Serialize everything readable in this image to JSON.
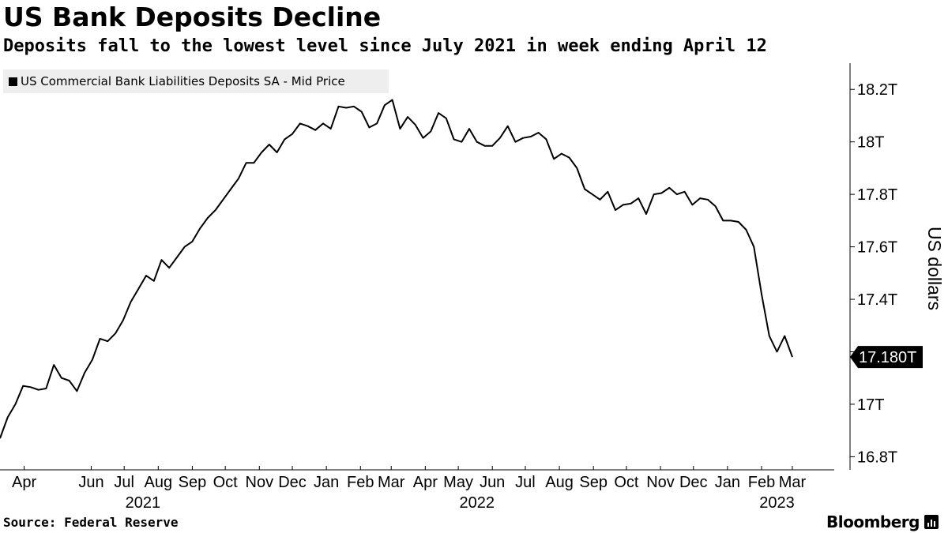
{
  "header": {
    "title": "US Bank Deposits Decline",
    "subtitle": "Deposits fall to the lowest level since July 2021 in week ending April 12"
  },
  "footer": {
    "source": "Source: Federal Reserve",
    "brand": "Bloomberg"
  },
  "colors": {
    "line": "#000000",
    "legend_background": "#eeeeee",
    "axis": "#000000"
  },
  "chart_data": {
    "type": "line",
    "title": "US Bank Deposits Decline",
    "subtitle": "Deposits fall to the lowest level since July 2021 in week ending April 12",
    "xlabel": "",
    "ylabel": "US dollars",
    "y_unit": "T",
    "legend": {
      "placement": "top-left",
      "entries": [
        "US Commercial Bank Liabilities Deposits SA - Mid Price"
      ]
    },
    "grid": false,
    "ylim": [
      16.75,
      18.3
    ],
    "y_ticks": [
      16.8,
      17.0,
      17.2,
      17.4,
      17.6,
      17.8,
      18.0,
      18.2
    ],
    "y_tick_labels": [
      "16.8T",
      "17T",
      "17.2T",
      "17.4T",
      "17.6T",
      "17.8T",
      "18T",
      "18.2T"
    ],
    "last_value_label": "17.180T",
    "x_range": [
      "2021-03-24",
      "2023-04-25"
    ],
    "month_labels": [
      {
        "label": "Apr",
        "date": "2021-04-15"
      },
      {
        "label": "Jun",
        "date": "2021-06-15"
      },
      {
        "label": "Jul",
        "date": "2021-07-15"
      },
      {
        "label": "Aug",
        "date": "2021-08-15"
      },
      {
        "label": "Sep",
        "date": "2021-09-15"
      },
      {
        "label": "Oct",
        "date": "2021-10-15"
      },
      {
        "label": "Nov",
        "date": "2021-11-15"
      },
      {
        "label": "Dec",
        "date": "2021-12-15"
      },
      {
        "label": "Jan",
        "date": "2022-01-15"
      },
      {
        "label": "Feb",
        "date": "2022-02-15"
      },
      {
        "label": "Mar",
        "date": "2022-03-15"
      },
      {
        "label": "Apr",
        "date": "2022-04-15"
      },
      {
        "label": "May",
        "date": "2022-05-15"
      },
      {
        "label": "Jun",
        "date": "2022-06-15"
      },
      {
        "label": "Jul",
        "date": "2022-07-15"
      },
      {
        "label": "Aug",
        "date": "2022-08-15"
      },
      {
        "label": "Sep",
        "date": "2022-09-15"
      },
      {
        "label": "Oct",
        "date": "2022-10-15"
      },
      {
        "label": "Nov",
        "date": "2022-11-15"
      },
      {
        "label": "Dec",
        "date": "2022-12-15"
      },
      {
        "label": "Jan",
        "date": "2023-01-15"
      },
      {
        "label": "Feb",
        "date": "2023-02-15"
      },
      {
        "label": "Mar",
        "date": "2023-03-15"
      }
    ],
    "year_labels": [
      {
        "label": "2021",
        "date": "2021-08-01"
      },
      {
        "label": "2022",
        "date": "2022-06-01"
      },
      {
        "label": "2023",
        "date": "2023-03-01"
      }
    ],
    "series": [
      {
        "name": "US Commercial Bank Liabilities Deposits SA - Mid Price",
        "points": [
          [
            "2021-03-24",
            16.87
          ],
          [
            "2021-03-31",
            16.95
          ],
          [
            "2021-04-07",
            17.0
          ],
          [
            "2021-04-14",
            17.07
          ],
          [
            "2021-04-21",
            17.065
          ],
          [
            "2021-04-28",
            17.055
          ],
          [
            "2021-05-05",
            17.06
          ],
          [
            "2021-05-12",
            17.15
          ],
          [
            "2021-05-19",
            17.1
          ],
          [
            "2021-05-26",
            17.09
          ],
          [
            "2021-06-02",
            17.05
          ],
          [
            "2021-06-09",
            17.12
          ],
          [
            "2021-06-16",
            17.17
          ],
          [
            "2021-06-23",
            17.25
          ],
          [
            "2021-06-30",
            17.24
          ],
          [
            "2021-07-07",
            17.27
          ],
          [
            "2021-07-14",
            17.32
          ],
          [
            "2021-07-21",
            17.39
          ],
          [
            "2021-07-28",
            17.44
          ],
          [
            "2021-08-04",
            17.49
          ],
          [
            "2021-08-11",
            17.47
          ],
          [
            "2021-08-18",
            17.55
          ],
          [
            "2021-08-25",
            17.52
          ],
          [
            "2021-09-01",
            17.56
          ],
          [
            "2021-09-08",
            17.6
          ],
          [
            "2021-09-15",
            17.62
          ],
          [
            "2021-09-22",
            17.67
          ],
          [
            "2021-09-29",
            17.71
          ],
          [
            "2021-10-06",
            17.74
          ],
          [
            "2021-10-13",
            17.78
          ],
          [
            "2021-10-20",
            17.82
          ],
          [
            "2021-10-27",
            17.86
          ],
          [
            "2021-11-03",
            17.92
          ],
          [
            "2021-11-10",
            17.92
          ],
          [
            "2021-11-17",
            17.96
          ],
          [
            "2021-11-24",
            17.99
          ],
          [
            "2021-12-01",
            17.96
          ],
          [
            "2021-12-08",
            18.01
          ],
          [
            "2021-12-15",
            18.03
          ],
          [
            "2021-12-22",
            18.07
          ],
          [
            "2021-12-29",
            18.06
          ],
          [
            "2022-01-05",
            18.045
          ],
          [
            "2022-01-12",
            18.07
          ],
          [
            "2022-01-19",
            18.05
          ],
          [
            "2022-01-26",
            18.135
          ],
          [
            "2022-02-02",
            18.13
          ],
          [
            "2022-02-09",
            18.135
          ],
          [
            "2022-02-16",
            18.115
          ],
          [
            "2022-02-23",
            18.055
          ],
          [
            "2022-03-02",
            18.07
          ],
          [
            "2022-03-09",
            18.14
          ],
          [
            "2022-03-16",
            18.16
          ],
          [
            "2022-03-23",
            18.05
          ],
          [
            "2022-03-30",
            18.095
          ],
          [
            "2022-04-06",
            18.065
          ],
          [
            "2022-04-13",
            18.015
          ],
          [
            "2022-04-20",
            18.04
          ],
          [
            "2022-04-27",
            18.11
          ],
          [
            "2022-05-04",
            18.09
          ],
          [
            "2022-05-11",
            18.01
          ],
          [
            "2022-05-18",
            18.0
          ],
          [
            "2022-05-25",
            18.05
          ],
          [
            "2022-06-01",
            18.0
          ],
          [
            "2022-06-08",
            17.985
          ],
          [
            "2022-06-15",
            17.985
          ],
          [
            "2022-06-22",
            18.015
          ],
          [
            "2022-06-29",
            18.06
          ],
          [
            "2022-07-06",
            18.0
          ],
          [
            "2022-07-13",
            18.015
          ],
          [
            "2022-07-20",
            18.02
          ],
          [
            "2022-07-27",
            18.035
          ],
          [
            "2022-08-03",
            18.01
          ],
          [
            "2022-08-10",
            17.935
          ],
          [
            "2022-08-17",
            17.955
          ],
          [
            "2022-08-24",
            17.94
          ],
          [
            "2022-08-31",
            17.9
          ],
          [
            "2022-09-07",
            17.82
          ],
          [
            "2022-09-14",
            17.8
          ],
          [
            "2022-09-21",
            17.78
          ],
          [
            "2022-09-28",
            17.81
          ],
          [
            "2022-10-05",
            17.74
          ],
          [
            "2022-10-12",
            17.76
          ],
          [
            "2022-10-19",
            17.765
          ],
          [
            "2022-10-26",
            17.785
          ],
          [
            "2022-11-02",
            17.725
          ],
          [
            "2022-11-09",
            17.8
          ],
          [
            "2022-11-16",
            17.805
          ],
          [
            "2022-11-23",
            17.825
          ],
          [
            "2022-11-30",
            17.8
          ],
          [
            "2022-12-07",
            17.81
          ],
          [
            "2022-12-14",
            17.76
          ],
          [
            "2022-12-21",
            17.785
          ],
          [
            "2022-12-28",
            17.78
          ],
          [
            "2023-01-04",
            17.755
          ],
          [
            "2023-01-11",
            17.7
          ],
          [
            "2023-01-18",
            17.7
          ],
          [
            "2023-01-25",
            17.695
          ],
          [
            "2023-02-01",
            17.665
          ],
          [
            "2023-02-08",
            17.6
          ],
          [
            "2023-02-15",
            17.42
          ],
          [
            "2023-02-22",
            17.26
          ],
          [
            "2023-03-01",
            17.2
          ],
          [
            "2023-03-08",
            17.26
          ],
          [
            "2023-03-15",
            17.18
          ]
        ]
      }
    ]
  }
}
